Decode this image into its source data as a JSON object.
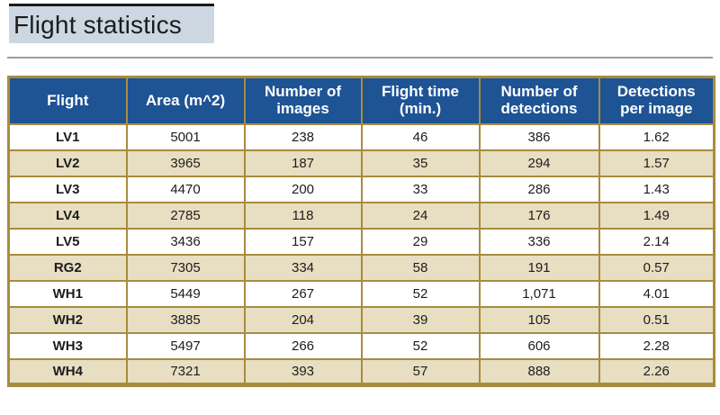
{
  "page_title": "Flight statistics",
  "colors": {
    "header_bg": "#1e5394",
    "gold_border": "#a78c3f",
    "row_alt_bg": "#e8dec1",
    "title_bg": "#ccd7e1",
    "title_bar": "#1a1a1a",
    "rule_gray": "#9e9e9e",
    "header_text": "#ffffff"
  },
  "chart_data": {
    "type": "table",
    "title": "Flight statistics",
    "columns": [
      "Flight",
      "Area (m^2)",
      "Number of\nimages",
      "Flight time\n(min.)",
      "Number of\ndetections",
      "Detections\nper image"
    ],
    "column_keys": [
      "flight",
      "area_m2",
      "num_images",
      "flight_time_min",
      "num_detections",
      "detections_per_image"
    ],
    "rows": [
      {
        "flight": "LV1",
        "area_m2": "5001",
        "num_images": "238",
        "flight_time_min": "46",
        "num_detections": "386",
        "detections_per_image": "1.62"
      },
      {
        "flight": "LV2",
        "area_m2": "3965",
        "num_images": "187",
        "flight_time_min": "35",
        "num_detections": "294",
        "detections_per_image": "1.57"
      },
      {
        "flight": "LV3",
        "area_m2": "4470",
        "num_images": "200",
        "flight_time_min": "33",
        "num_detections": "286",
        "detections_per_image": "1.43"
      },
      {
        "flight": "LV4",
        "area_m2": "2785",
        "num_images": "118",
        "flight_time_min": "24",
        "num_detections": "176",
        "detections_per_image": "1.49"
      },
      {
        "flight": "LV5",
        "area_m2": "3436",
        "num_images": "157",
        "flight_time_min": "29",
        "num_detections": "336",
        "detections_per_image": "2.14"
      },
      {
        "flight": "RG2",
        "area_m2": "7305",
        "num_images": "334",
        "flight_time_min": "58",
        "num_detections": "191",
        "detections_per_image": "0.57"
      },
      {
        "flight": "WH1",
        "area_m2": "5449",
        "num_images": "267",
        "flight_time_min": "52",
        "num_detections": "1,071",
        "detections_per_image": "4.01"
      },
      {
        "flight": "WH2",
        "area_m2": "3885",
        "num_images": "204",
        "flight_time_min": "39",
        "num_detections": "105",
        "detections_per_image": "0.51"
      },
      {
        "flight": "WH3",
        "area_m2": "5497",
        "num_images": "266",
        "flight_time_min": "52",
        "num_detections": "606",
        "detections_per_image": "2.28"
      },
      {
        "flight": "WH4",
        "area_m2": "7321",
        "num_images": "393",
        "flight_time_min": "57",
        "num_detections": "888",
        "detections_per_image": "2.26"
      }
    ]
  }
}
